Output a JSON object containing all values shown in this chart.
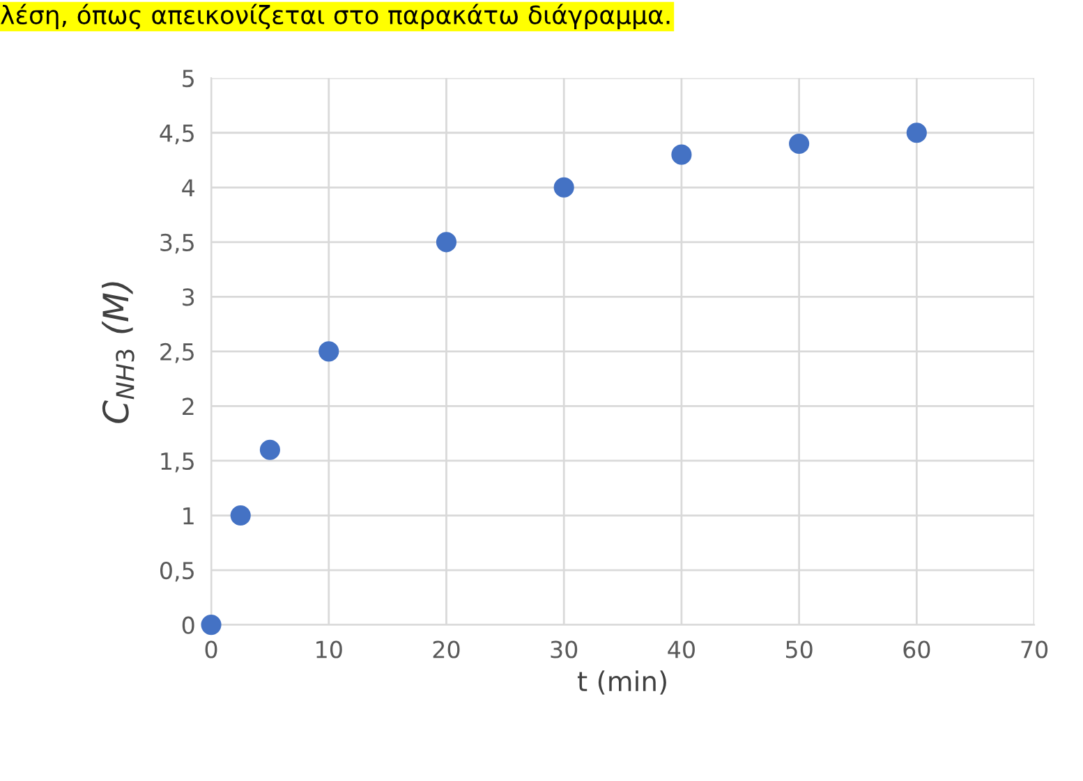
{
  "chart_data": {
    "type": "scatter",
    "xlabel": "t (min)",
    "ylabel": "C$_{NH3}$ (M)",
    "annotations": [
      "λέση, όπως απεικονίζεται στο παρακάτω διάγραμμα."
    ],
    "x": [
      0,
      2.5,
      5,
      10,
      20,
      30,
      40,
      50,
      60
    ],
    "series": [
      {
        "color": "#4472c4",
        "values": [
          0,
          1,
          1.6,
          2.5,
          3.5,
          4,
          4.3,
          4.4,
          4.5
        ]
      }
    ],
    "xlim": [
      0,
      70
    ],
    "xticks": [
      0,
      10,
      20,
      30,
      40,
      50,
      60,
      70
    ],
    "ylim": [
      0,
      5
    ],
    "yticks": [
      0,
      {
        "value": 0.5,
        "label": "0,5"
      },
      1,
      {
        "value": 1.5,
        "label": "1,5"
      },
      2,
      {
        "value": 2.5,
        "label": "2,5"
      },
      3,
      {
        "value": 3.5,
        "label": "3,5"
      },
      4,
      {
        "value": 4.5,
        "label": "4,5"
      },
      5
    ],
    "grid": true,
    "marker": "circle",
    "legend": false
  }
}
